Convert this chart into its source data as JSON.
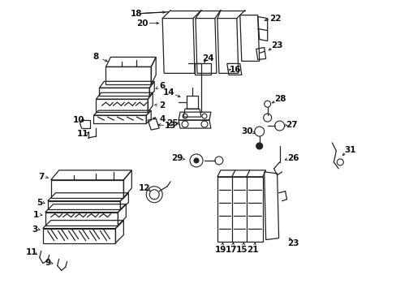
{
  "background_color": "#ffffff",
  "line_color": "#222222",
  "text_color": "#111111",
  "fig_width": 4.89,
  "fig_height": 3.6,
  "dpi": 100
}
